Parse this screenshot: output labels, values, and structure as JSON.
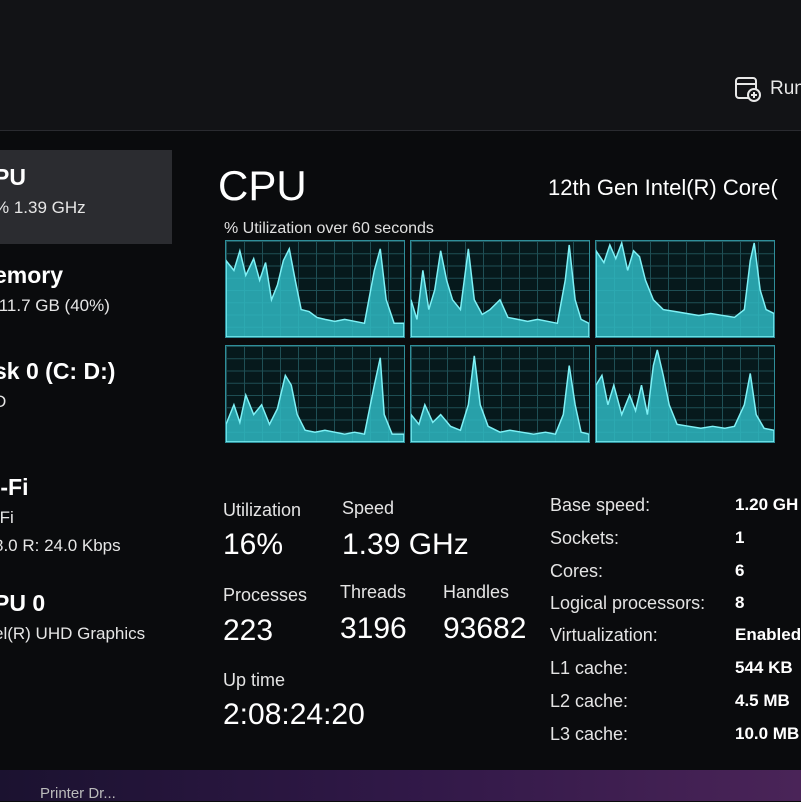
{
  "toolbar": {
    "run_task_label": "Run"
  },
  "sidebar": {
    "items": [
      {
        "title": "PU",
        "sub": "% 1.39 GHz"
      },
      {
        "title": "emory",
        "sub": "/11.7 GB (40%)"
      },
      {
        "title": "sk 0 (C: D:)",
        "sub": "D",
        "sub2": ""
      },
      {
        "title": "i-Fi",
        "sub": "-Fi",
        "sub2": "8.0 R: 24.0 Kbps"
      },
      {
        "title": "PU 0",
        "sub": "el(R) UHD Graphics"
      }
    ]
  },
  "main": {
    "title": "CPU",
    "model": "12th Gen Intel(R) Core(",
    "graph_label": "% Utilization over 60 seconds",
    "stats": {
      "utilization_label": "Utilization",
      "utilization_value": "16%",
      "speed_label": "Speed",
      "speed_value": "1.39 GHz",
      "processes_label": "Processes",
      "processes_value": "223",
      "threads_label": "Threads",
      "threads_value": "3196",
      "handles_label": "Handles",
      "handles_value": "93682",
      "uptime_label": "Up time",
      "uptime_value": "2:08:24:20"
    },
    "specs": [
      {
        "label": "Base speed:",
        "value": "1.20 GH"
      },
      {
        "label": "Sockets:",
        "value": "1"
      },
      {
        "label": "Cores:",
        "value": "6"
      },
      {
        "label": "Logical processors:",
        "value": "8"
      },
      {
        "label": "Virtualization:",
        "value": "Enabled"
      },
      {
        "label": "L1 cache:",
        "value": "544 KB"
      },
      {
        "label": "L2 cache:",
        "value": "4.5 MB"
      },
      {
        "label": "L3 cache:",
        "value": "10.0 MB"
      }
    ]
  },
  "taskbar": {
    "text": "Printer Dr..."
  },
  "colors": {
    "graph_line": "#5fe6ee",
    "graph_fill": "#2fb8c2",
    "graph_border": "#2f8e99"
  }
}
